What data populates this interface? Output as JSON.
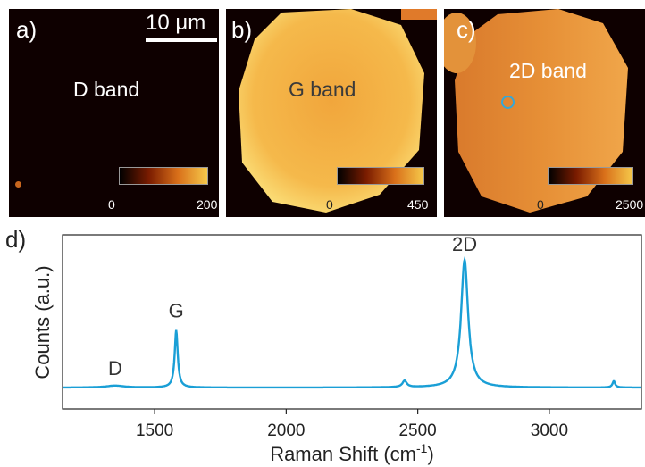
{
  "figure": {
    "panels": [
      {
        "id": "a",
        "label": "a)",
        "band_title": "D band",
        "colorbar": {
          "min_label": "0",
          "max_label": "200"
        }
      },
      {
        "id": "b",
        "label": "b)",
        "band_title": "G band",
        "colorbar": {
          "min_label": "0",
          "max_label": "450"
        }
      },
      {
        "id": "c",
        "label": "c)",
        "band_title": "2D band",
        "colorbar": {
          "min_label": "0",
          "max_label": "2500"
        }
      }
    ],
    "scale_bar_label": "10 μm",
    "spectrum_panel_label": "d)"
  },
  "colors": {
    "spectrum_line": "#1a9fd6",
    "map_background": "#0e0000",
    "flake_g": "#f3b443",
    "flake_2d": "#e8913a",
    "marker_circle": "#35a7d8"
  },
  "chart_data": {
    "type": "line",
    "title": "",
    "xlabel": "Raman Shift (cm⁻¹)",
    "ylabel": "Counts (a.u.)",
    "xlim": [
      1150,
      3350
    ],
    "ylim": [
      0,
      1.0
    ],
    "xticks": [
      1500,
      2000,
      2500,
      3000
    ],
    "yticks_shown": false,
    "grid": false,
    "series": [
      {
        "peaks": [
          {
            "label": "D",
            "x": 1350,
            "height": 0.015
          },
          {
            "label": "G",
            "x": 1582,
            "height": 0.45
          },
          {
            "x": 2450,
            "height": 0.05
          },
          {
            "label": "2D",
            "x": 2678,
            "height": 1.0
          },
          {
            "x": 3245,
            "height": 0.05
          }
        ],
        "baseline": 0.0
      }
    ],
    "annotations": [
      "D",
      "G",
      "2D"
    ]
  }
}
